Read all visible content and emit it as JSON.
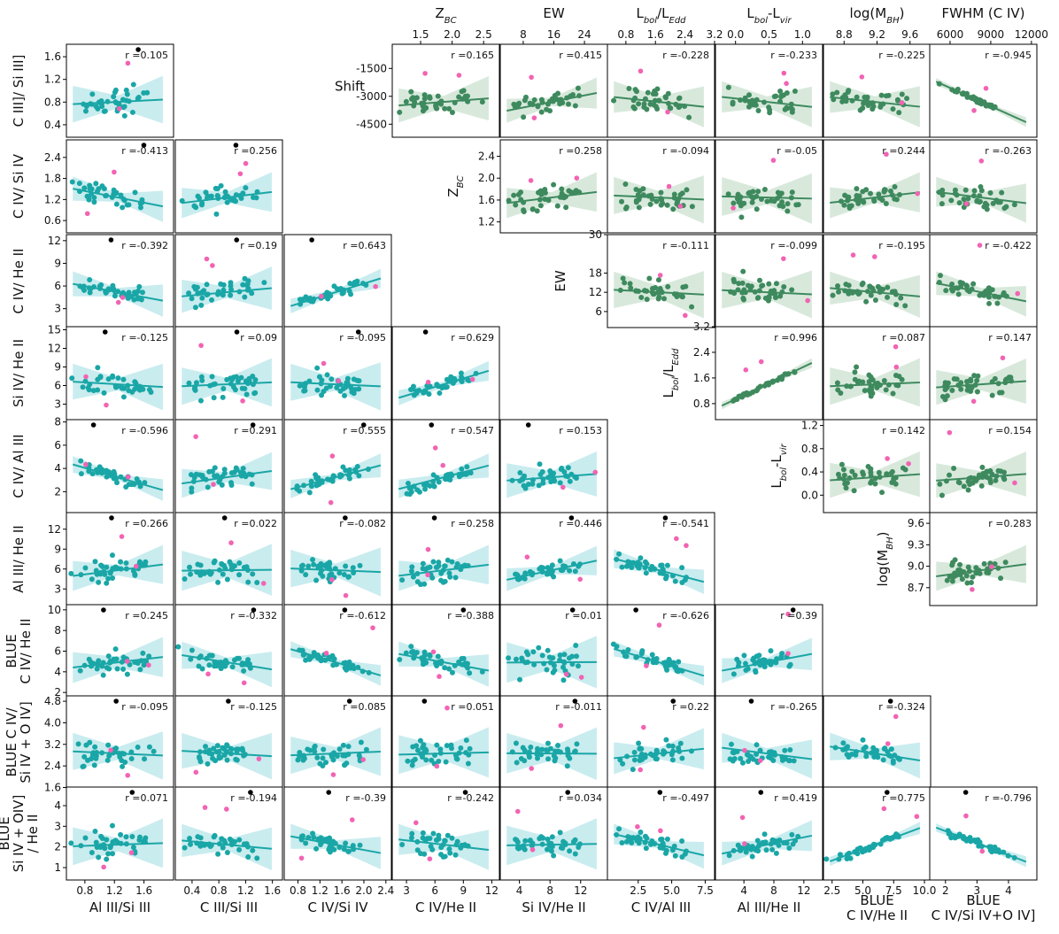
{
  "colors": {
    "teal": "#1aa6a6",
    "teal_band": "#c9ecef",
    "green": "#3e8a5e",
    "green_band": "#d8e9dc",
    "pink": "#f263b3",
    "black": "#000000"
  },
  "chart_data": {
    "type": "scatter",
    "title": "",
    "lower_panels": {
      "x_labels": [
        [
          "Al III/Si III"
        ],
        [
          "C III/Si III"
        ],
        [
          "C IV/Si IV"
        ],
        [
          "C IV/He II"
        ],
        [
          "Si IV/He II"
        ],
        [
          "C IV/Al III"
        ],
        [
          "Al III/He II"
        ],
        [
          "BLUE",
          "C IV/He II"
        ],
        [
          "BLUE",
          "C IV/Si IV+O IV]"
        ]
      ],
      "y_labels": [
        [
          "C III]/ Si III]"
        ],
        [
          "C IV/ Si IV"
        ],
        [
          "C IV/ He II"
        ],
        [
          "Si IV/ He II"
        ],
        [
          "C IV/ Al III"
        ],
        [
          "Al III/ He II"
        ],
        [
          "BLUE",
          "C IV/ He II"
        ],
        [
          "BLUE  C IV/",
          "Si IV + O IV]"
        ],
        [
          "BLUE",
          "Si IV + OIV]",
          "/ He II"
        ]
      ],
      "x_ticks": [
        [
          "0.8",
          "1.2",
          "1.6"
        ],
        [
          "0.4",
          "0.8",
          "1.2",
          "1.6"
        ],
        [
          "0.8",
          "1.2",
          "1.6",
          "2.0",
          "2.4"
        ],
        [
          "3",
          "6",
          "9",
          "12"
        ],
        [
          "4",
          "8",
          "12"
        ],
        [
          "2.5",
          "5.0",
          "7.5"
        ],
        [
          "4",
          "8",
          "12"
        ],
        [
          "2.5",
          "5.0",
          "7.5",
          "10.0"
        ],
        [
          "2",
          "3",
          "4"
        ]
      ],
      "y_ticks": [
        [
          "0.4",
          "0.8",
          "1.2",
          "1.6"
        ],
        [
          "0.6",
          "1.2",
          "1.8",
          "2.4"
        ],
        [
          "3",
          "6",
          "9",
          "12"
        ],
        [
          "3",
          "6",
          "9",
          "12",
          "15"
        ],
        [
          "2",
          "4",
          "6",
          "8"
        ],
        [
          "3",
          "6",
          "9",
          "12"
        ],
        [
          "2",
          "4",
          "6",
          "8",
          "10"
        ],
        [
          "1.6",
          "2.4",
          "3.2",
          "4.0",
          "4.8"
        ],
        [
          "1",
          "2",
          "3",
          "4"
        ]
      ],
      "x_ranges": [
        [
          0.55,
          2.0
        ],
        [
          0.15,
          1.75
        ],
        [
          0.55,
          2.5
        ],
        [
          1.5,
          12.8
        ],
        [
          1.5,
          15.5
        ],
        [
          0.2,
          8.2
        ],
        [
          0.2,
          14.5
        ],
        [
          1.8,
          10.5
        ],
        [
          1.5,
          4.9
        ]
      ],
      "y_ranges": [
        [
          0.18,
          1.82
        ],
        [
          0.25,
          2.9
        ],
        [
          0.5,
          12.8
        ],
        [
          0.5,
          15.5
        ],
        [
          0.2,
          8.2
        ],
        [
          0.5,
          14.5
        ],
        [
          1.5,
          10.5
        ],
        [
          1.55,
          5.0
        ],
        [
          0.4,
          4.9
        ]
      ],
      "r_values": [
        [
          "0.105"
        ],
        [
          "-0.413",
          "0.256"
        ],
        [
          "-0.392",
          "0.19",
          "0.643"
        ],
        [
          "-0.125",
          "0.09",
          "-0.095",
          "0.629"
        ],
        [
          "-0.596",
          "0.291",
          "0.555",
          "0.547",
          "0.153"
        ],
        [
          "0.266",
          "0.022",
          "-0.082",
          "0.258",
          "0.446",
          "-0.541"
        ],
        [
          "0.245",
          "-0.332",
          "-0.612",
          "-0.388",
          "0.01",
          "-0.626",
          "0.39"
        ],
        [
          "-0.095",
          "-0.125",
          "0.085",
          "0.051",
          "-0.011",
          "0.22",
          "-0.265",
          "-0.324"
        ],
        [
          "0.071",
          "-0.194",
          "-0.39",
          "-0.242",
          "0.034",
          "-0.497",
          "0.419",
          "0.775",
          "-0.796"
        ]
      ]
    },
    "upper_panels": {
      "x_labels": [
        "Z_BC",
        "EW",
        "L_bol/L_Edd",
        "L_bol-L_vir",
        "log(M_BH)",
        "FWHM (C IV)"
      ],
      "y_labels": [
        "Shift",
        "Z_BC",
        "EW",
        "L_bol/L_Edd",
        "L_bol-L_vir",
        "log(M_BH)"
      ],
      "x_ticks": [
        [
          "1.5",
          "2.0",
          "2.5"
        ],
        [
          "8",
          "16",
          "24"
        ],
        [
          "0.8",
          "1.6",
          "2.4",
          "3.2"
        ],
        [
          "0.0",
          "0.5",
          "1.0"
        ],
        [
          "8.8",
          "9.2",
          "9.6"
        ],
        [
          "6000",
          "9000",
          "12000"
        ]
      ],
      "y_ticks": [
        [
          "-1500",
          "-3000",
          "-4500"
        ],
        [
          "2.4",
          "2.0",
          "1.6",
          "1.2"
        ],
        [
          "30",
          "18",
          "12",
          "6"
        ],
        [
          "3.2",
          "2.4",
          "1.6",
          "0.8"
        ],
        [
          "1.2",
          "0.8",
          "0.4",
          "0.0"
        ],
        [
          "9.6",
          "9.3",
          "9.0",
          "8.7"
        ]
      ],
      "x_ranges": [
        [
          1.05,
          2.75
        ],
        [
          2,
          30
        ],
        [
          0.3,
          3.2
        ],
        [
          -0.3,
          1.3
        ],
        [
          8.55,
          9.85
        ],
        [
          4500,
          12400
        ]
      ],
      "y_ranges": [
        [
          -5200,
          -200
        ],
        [
          1.0,
          2.7
        ],
        [
          1,
          30
        ],
        [
          0.3,
          3.2
        ],
        [
          -0.3,
          1.3
        ],
        [
          8.45,
          9.75
        ]
      ],
      "r_values": [
        [
          "0.165",
          "0.415",
          "-0.228",
          "-0.233",
          "-0.225",
          "-0.945"
        ],
        [
          "0.258",
          "-0.094",
          "-0.05",
          "0.244",
          "-0.263"
        ],
        [
          "-0.111",
          "-0.099",
          "-0.195",
          "-0.422"
        ],
        [
          "0.996",
          "0.087",
          "0.147"
        ],
        [
          "0.142",
          "0.154"
        ],
        [
          "0.283"
        ]
      ]
    }
  }
}
